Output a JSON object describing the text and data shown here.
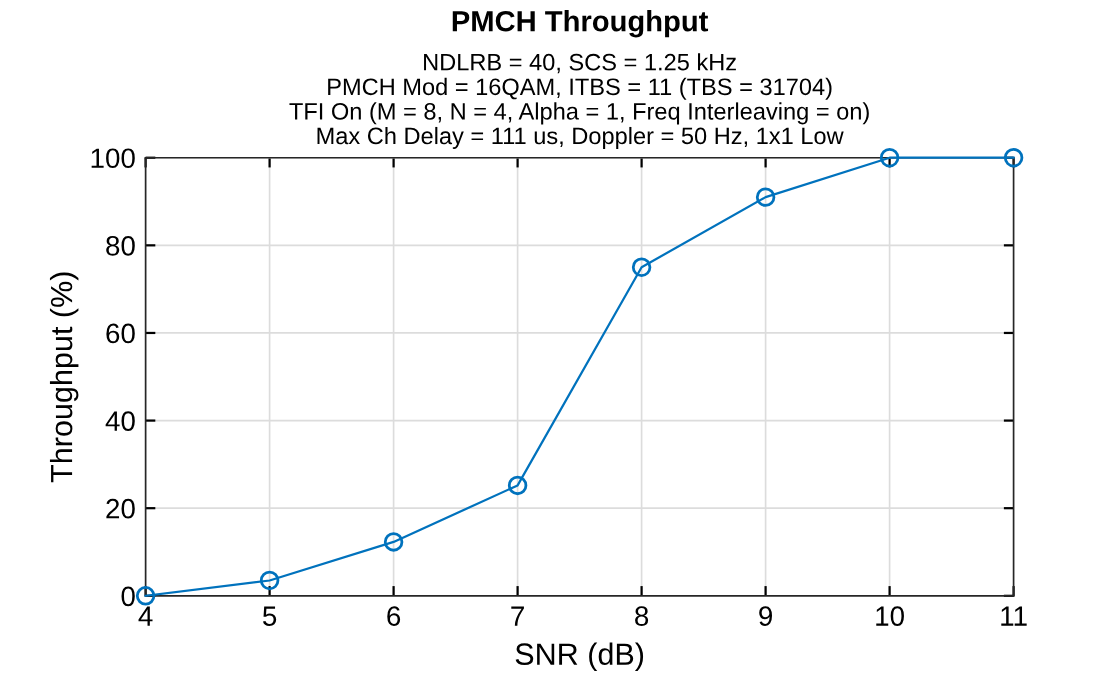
{
  "chart_data": {
    "type": "line",
    "title": "PMCH Throughput",
    "subtitle": "NDLRB = 40, SCS = 1.25 kHz\nPMCH Mod = 16QAM, ITBS = 11 (TBS = 31704)\nTFI On (M = 8, N = 4, Alpha = 1, Freq Interleaving = on)\nMax Ch Delay = 111 us, Doppler = 50 Hz, 1x1 Low",
    "xlabel": "SNR (dB)",
    "ylabel": "Throughput (%)",
    "x": [
      4,
      5,
      6,
      7,
      8,
      9,
      10,
      11
    ],
    "series": [
      {
        "color": "#0072bd",
        "values": [
          0,
          3.5,
          12.3,
          25.2,
          75,
          91,
          100,
          100
        ]
      }
    ],
    "xlim": [
      4,
      11
    ],
    "xticks": [
      4,
      5,
      6,
      7,
      8,
      9,
      10,
      11
    ],
    "ylim": [
      0,
      100
    ],
    "yticks": [
      0,
      20,
      40,
      60,
      80,
      100
    ],
    "grid": true,
    "marker": "circle",
    "line_style": "solid"
  }
}
